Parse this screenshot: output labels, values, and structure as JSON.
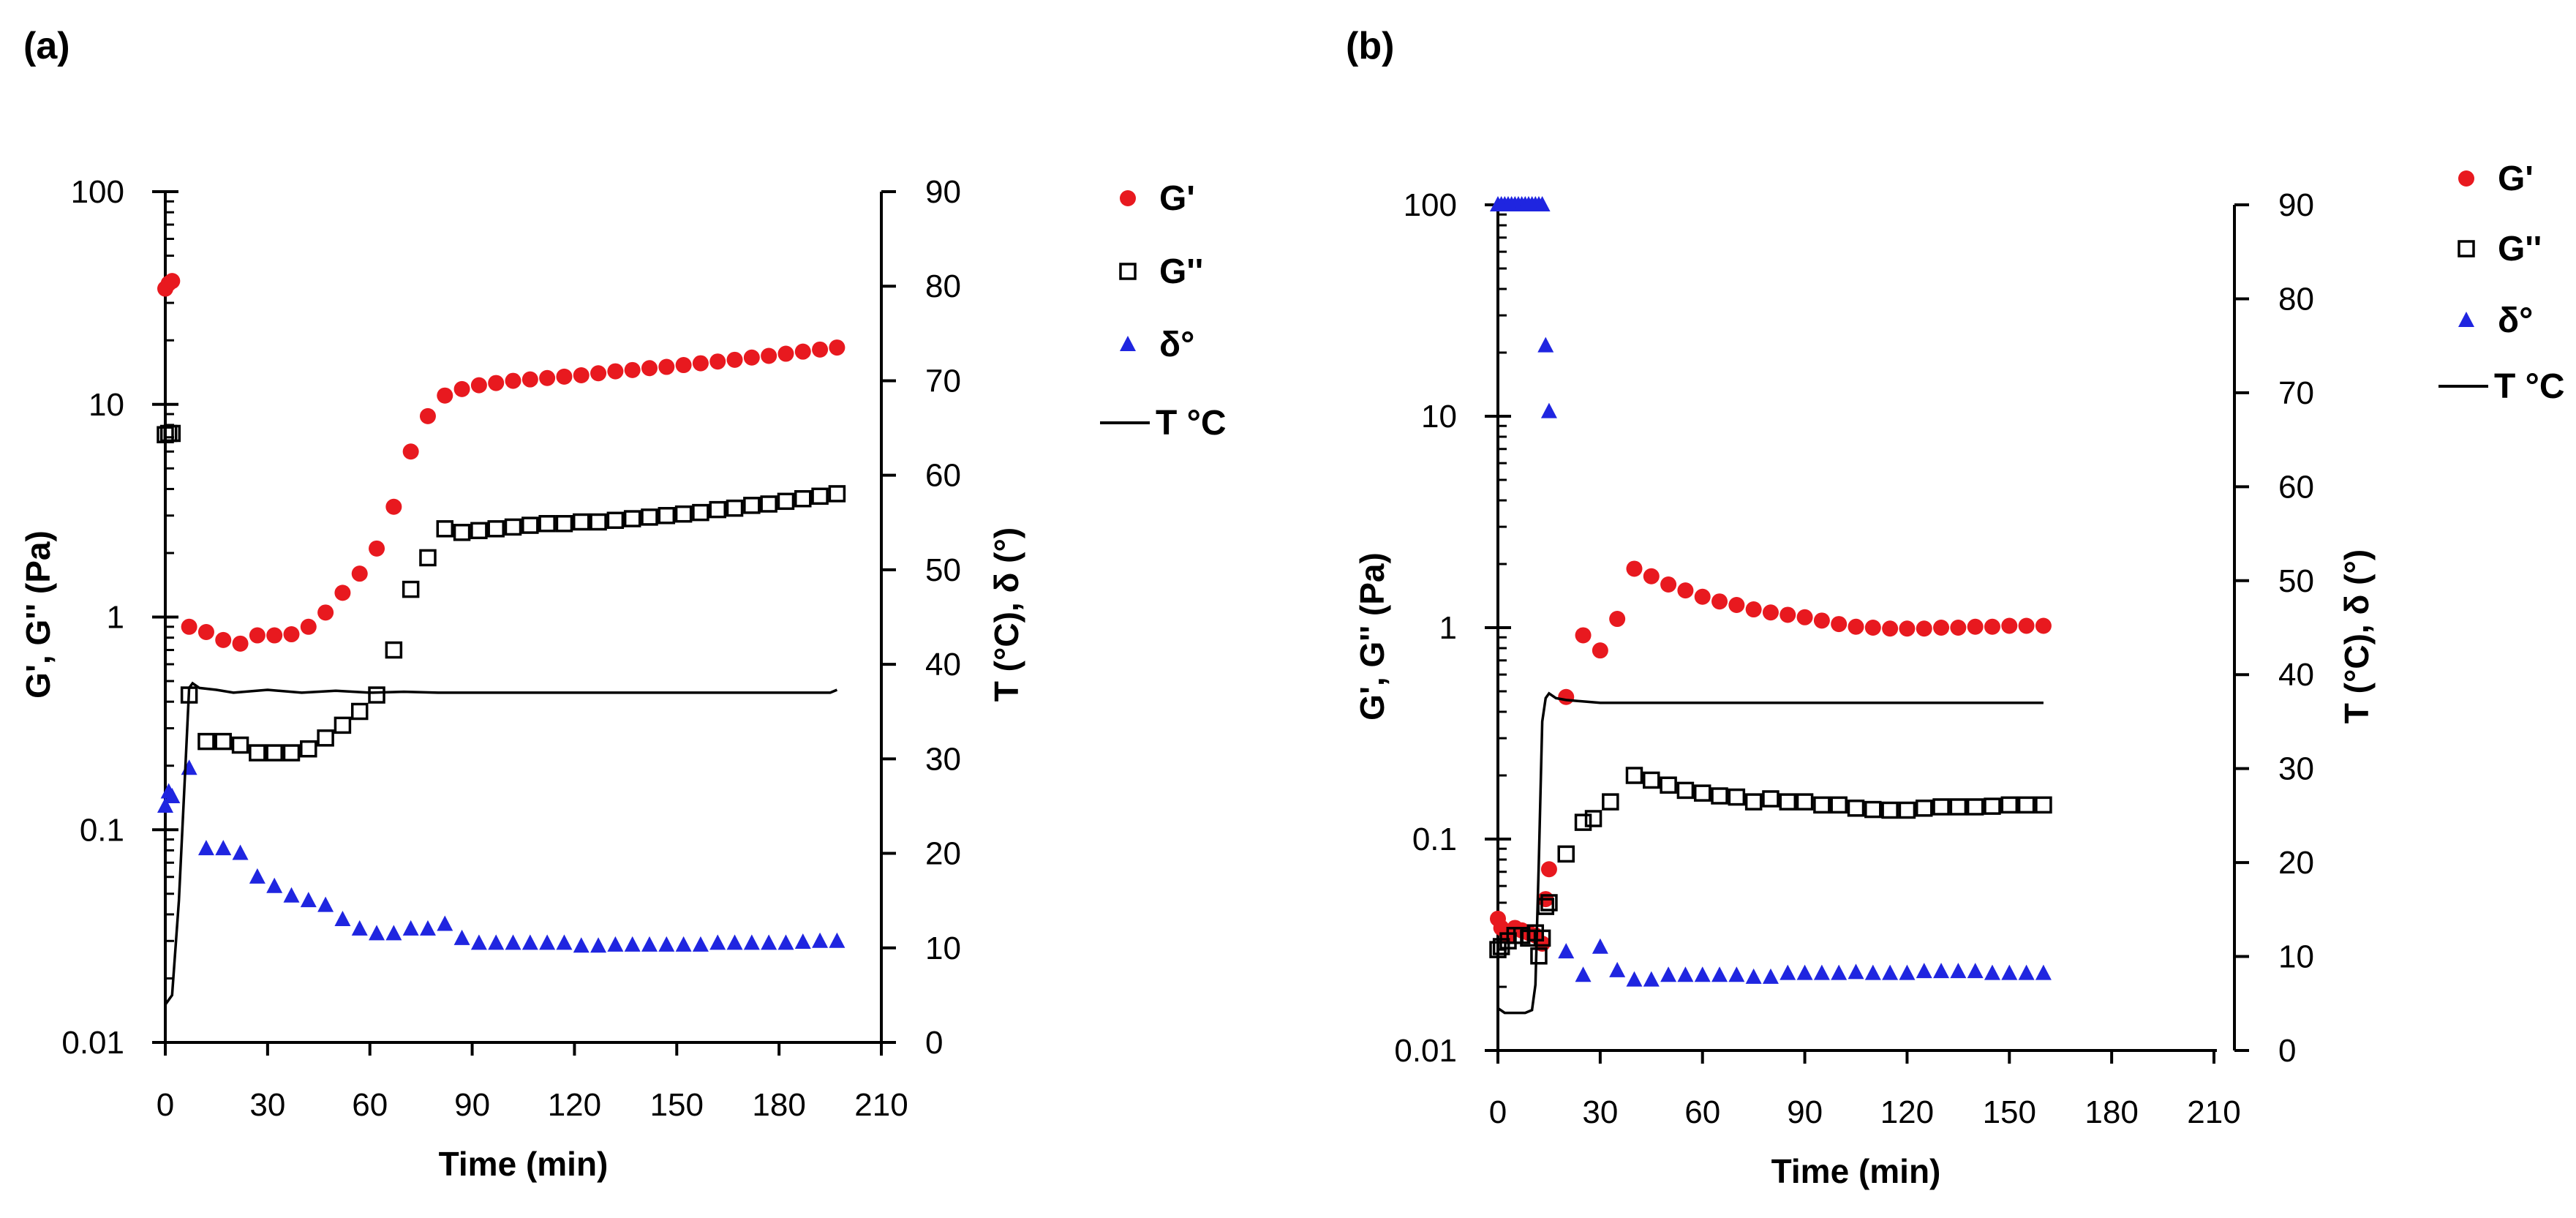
{
  "chart_data": [
    {
      "type": "scatter",
      "panel_label": "(a)",
      "xlabel": "Time (min)",
      "ylabel_left": "G', G'' (Pa)",
      "ylabel_right": "T (°C), δ (°)",
      "xlim": [
        0,
        210
      ],
      "ylim_left": [
        0.01,
        100
      ],
      "ylim_right": [
        0,
        90
      ],
      "x_ticks": [
        "0",
        "30",
        "60",
        "90",
        "120",
        "150",
        "180",
        "210"
      ],
      "y_left_ticks": [
        "0.01",
        "0.1",
        "1",
        "10",
        "100"
      ],
      "y_right_ticks": [
        "0",
        "10",
        "20",
        "30",
        "40",
        "50",
        "60",
        "70",
        "80",
        "90"
      ],
      "legend_position": "right-outside",
      "legend": [
        "G'",
        "G''",
        "δ°",
        "T °C"
      ],
      "series": [
        {
          "name": "G'",
          "axis": "left",
          "marker": "circle",
          "color": "#e8191f",
          "x": [
            0,
            1,
            2,
            7,
            12,
            17,
            22,
            27,
            32,
            37,
            42,
            47,
            52,
            57,
            62,
            67,
            72,
            77,
            82,
            87,
            92,
            97,
            102,
            107,
            112,
            117,
            122,
            127,
            132,
            137,
            142,
            147,
            152,
            157,
            162,
            167,
            172,
            177,
            182,
            187,
            192,
            197
          ],
          "y": [
            35,
            37,
            38,
            0.9,
            0.85,
            0.78,
            0.75,
            0.82,
            0.82,
            0.83,
            0.9,
            1.05,
            1.3,
            1.6,
            2.1,
            3.3,
            6.0,
            8.8,
            11.0,
            11.8,
            12.3,
            12.6,
            12.9,
            13.1,
            13.3,
            13.5,
            13.7,
            14.0,
            14.3,
            14.5,
            14.8,
            15.0,
            15.3,
            15.6,
            15.9,
            16.2,
            16.6,
            16.9,
            17.3,
            17.7,
            18.1,
            18.5
          ]
        },
        {
          "name": "G''",
          "axis": "left",
          "marker": "square-open",
          "color": "#000000",
          "x": [
            0,
            1,
            2,
            7,
            12,
            17,
            22,
            27,
            32,
            37,
            42,
            47,
            52,
            57,
            62,
            67,
            72,
            77,
            82,
            87,
            92,
            97,
            102,
            107,
            112,
            117,
            122,
            127,
            132,
            137,
            142,
            147,
            152,
            157,
            162,
            167,
            172,
            177,
            182,
            187,
            192,
            197
          ],
          "y": [
            7.2,
            7.3,
            7.3,
            0.43,
            0.26,
            0.26,
            0.25,
            0.23,
            0.23,
            0.23,
            0.24,
            0.27,
            0.31,
            0.36,
            0.43,
            0.7,
            1.35,
            1.9,
            2.6,
            2.5,
            2.55,
            2.6,
            2.65,
            2.7,
            2.75,
            2.75,
            2.8,
            2.8,
            2.85,
            2.9,
            2.95,
            3.0,
            3.05,
            3.1,
            3.2,
            3.25,
            3.35,
            3.4,
            3.5,
            3.6,
            3.7,
            3.8
          ]
        },
        {
          "name": "δ°",
          "axis": "right",
          "marker": "triangle",
          "color": "#1f25e0",
          "x": [
            0,
            1,
            2,
            7,
            12,
            17,
            22,
            27,
            32,
            37,
            42,
            47,
            52,
            57,
            62,
            67,
            72,
            77,
            82,
            87,
            92,
            97,
            102,
            107,
            112,
            117,
            122,
            127,
            132,
            137,
            142,
            147,
            152,
            157,
            162,
            167,
            172,
            177,
            182,
            187,
            192,
            197
          ],
          "y": [
            25,
            26.5,
            26,
            29,
            20.5,
            20.5,
            20,
            17.5,
            16.5,
            15.5,
            15,
            14.5,
            13,
            12,
            11.5,
            11.5,
            12,
            12,
            12.5,
            11,
            10.5,
            10.5,
            10.5,
            10.5,
            10.5,
            10.5,
            10.2,
            10.2,
            10.3,
            10.3,
            10.3,
            10.3,
            10.3,
            10.3,
            10.5,
            10.5,
            10.5,
            10.5,
            10.5,
            10.6,
            10.7,
            10.7
          ]
        },
        {
          "name": "T °C",
          "axis": "right",
          "marker": "line",
          "color": "#000000",
          "x": [
            0,
            2,
            4,
            6,
            7,
            8,
            10,
            15,
            20,
            30,
            40,
            50,
            60,
            70,
            80,
            100,
            120,
            150,
            180,
            195,
            197
          ],
          "y": [
            4,
            5,
            15,
            30,
            37.5,
            38,
            37.5,
            37.3,
            37,
            37.3,
            37,
            37.2,
            37,
            37.1,
            37,
            37,
            37,
            37,
            37,
            37,
            37.3
          ]
        }
      ]
    },
    {
      "type": "scatter",
      "panel_label": "(b)",
      "xlabel": "Time (min)",
      "ylabel_left": "G', G'' (Pa)",
      "ylabel_right": "T (°C), δ (°)",
      "xlim": [
        0,
        210
      ],
      "ylim_left": [
        0.01,
        100
      ],
      "ylim_right": [
        0,
        90
      ],
      "x_ticks": [
        "0",
        "30",
        "60",
        "90",
        "120",
        "150",
        "180",
        "210"
      ],
      "y_left_ticks": [
        "0.01",
        "0.1",
        "1",
        "10",
        "100"
      ],
      "y_right_ticks": [
        "0",
        "10",
        "20",
        "30",
        "40",
        "50",
        "60",
        "70",
        "80",
        "90"
      ],
      "legend_position": "right-outside",
      "legend": [
        "G'",
        "G''",
        "δ°",
        "T °C"
      ],
      "series": [
        {
          "name": "G'",
          "axis": "left",
          "marker": "circle",
          "color": "#e8191f",
          "x": [
            0,
            1,
            3,
            5,
            7,
            9,
            11,
            13,
            14,
            15,
            20,
            25,
            30,
            35,
            40,
            45,
            50,
            55,
            60,
            65,
            70,
            75,
            80,
            85,
            90,
            95,
            100,
            105,
            110,
            115,
            120,
            125,
            130,
            135,
            140,
            145,
            150,
            155,
            160
          ],
          "y": [
            0.042,
            0.038,
            0.035,
            0.038,
            0.037,
            0.036,
            0.035,
            0.032,
            0.052,
            0.072,
            0.47,
            0.92,
            0.78,
            1.1,
            1.9,
            1.75,
            1.6,
            1.5,
            1.4,
            1.33,
            1.28,
            1.22,
            1.18,
            1.15,
            1.12,
            1.08,
            1.04,
            1.01,
            1.0,
            0.99,
            0.99,
            0.99,
            1.0,
            1.0,
            1.01,
            1.01,
            1.02,
            1.02,
            1.02
          ]
        },
        {
          "name": "G''",
          "axis": "left",
          "marker": "square-open",
          "color": "#000000",
          "x": [
            0,
            1,
            3,
            5,
            7,
            9,
            11,
            12,
            13,
            14,
            15,
            20,
            25,
            28,
            33,
            40,
            45,
            50,
            55,
            60,
            65,
            70,
            75,
            80,
            85,
            90,
            95,
            100,
            105,
            110,
            115,
            120,
            125,
            130,
            135,
            140,
            145,
            150,
            155,
            160
          ],
          "y": [
            0.03,
            0.031,
            0.033,
            0.035,
            0.035,
            0.034,
            0.036,
            0.028,
            0.034,
            0.048,
            0.05,
            0.085,
            0.12,
            0.125,
            0.15,
            0.2,
            0.19,
            0.18,
            0.17,
            0.165,
            0.16,
            0.158,
            0.15,
            0.155,
            0.15,
            0.15,
            0.145,
            0.145,
            0.14,
            0.138,
            0.137,
            0.137,
            0.14,
            0.142,
            0.142,
            0.142,
            0.143,
            0.145,
            0.145,
            0.145
          ]
        },
        {
          "name": "δ°",
          "axis": "right",
          "marker": "triangle",
          "color": "#1f25e0",
          "x": [
            0,
            1,
            2,
            3,
            4,
            5,
            6,
            7,
            8,
            9,
            10,
            11,
            12,
            13,
            14,
            15,
            20,
            25,
            30,
            35,
            40,
            45,
            50,
            55,
            60,
            65,
            70,
            75,
            80,
            85,
            90,
            95,
            100,
            105,
            110,
            115,
            120,
            125,
            130,
            135,
            140,
            145,
            150,
            155,
            160
          ],
          "y": [
            90,
            90,
            90,
            90,
            90,
            90,
            90,
            90,
            90,
            90,
            90,
            90,
            90,
            90,
            75,
            68,
            10.5,
            8,
            11,
            8.5,
            7.5,
            7.5,
            8,
            8,
            8,
            8,
            8,
            7.8,
            7.8,
            8.2,
            8.2,
            8.2,
            8.2,
            8.3,
            8.2,
            8.2,
            8.2,
            8.4,
            8.4,
            8.4,
            8.4,
            8.2,
            8.2,
            8.2,
            8.2
          ]
        },
        {
          "name": "T °C",
          "axis": "right",
          "marker": "line",
          "color": "#000000",
          "x": [
            0,
            2,
            4,
            6,
            8,
            10,
            11,
            12,
            13,
            14,
            15,
            17,
            20,
            30,
            40,
            60,
            80,
            100,
            120,
            140,
            160
          ],
          "y": [
            4.5,
            4,
            4,
            4,
            4,
            4.3,
            7,
            20,
            35,
            37.5,
            38,
            37.5,
            37.3,
            37,
            37,
            37,
            37,
            37,
            37,
            37,
            37
          ]
        }
      ]
    }
  ]
}
